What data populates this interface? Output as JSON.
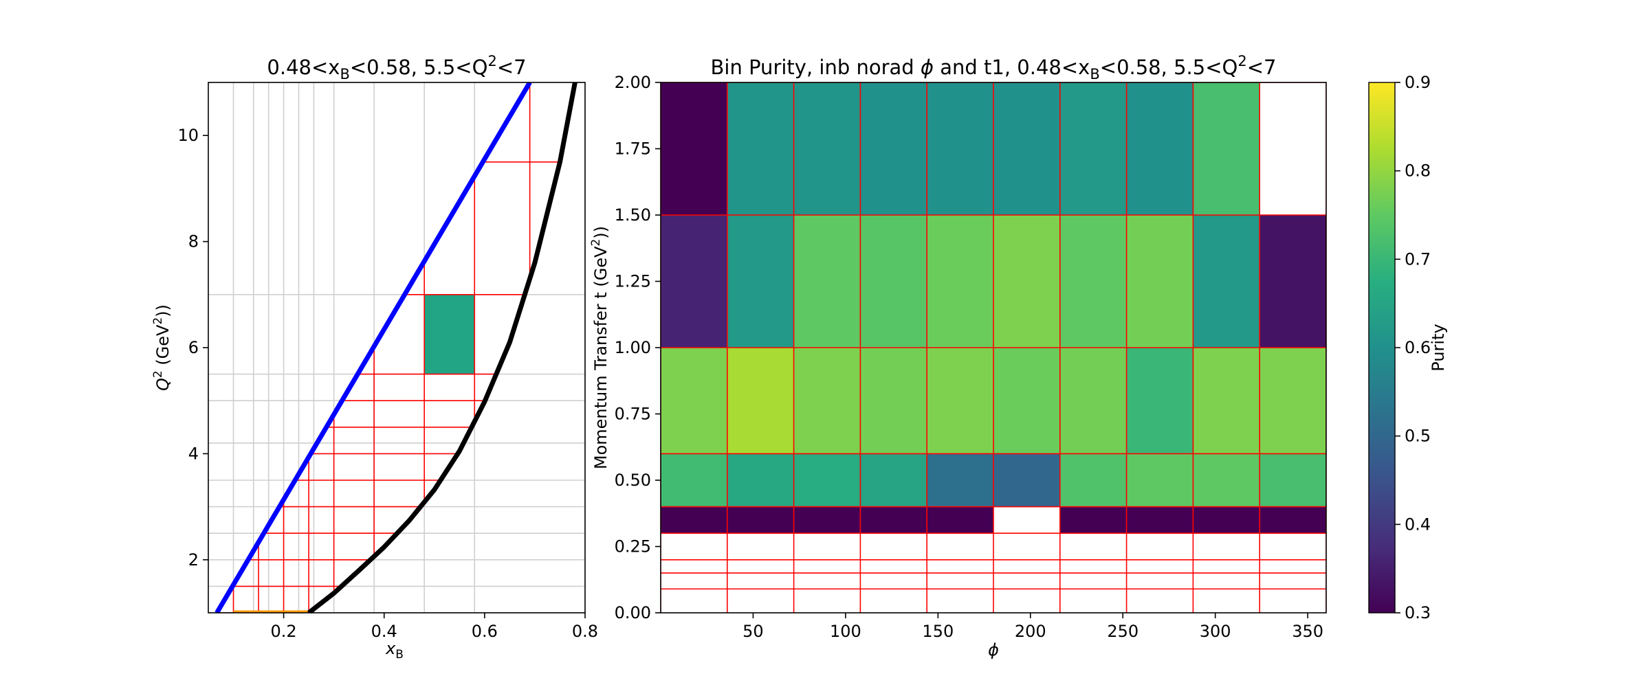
{
  "chart_data": [
    {
      "type": "scatter",
      "title_parts": {
        "a": "0.48<x",
        "a_sub": "B",
        "b": "<0.58, 5.5<Q",
        "b_sup": "2",
        "c": "<7"
      },
      "xlabel": {
        "main": "x",
        "sub": "B"
      },
      "ylabel": {
        "a": "Q",
        "a_sup": "2",
        "b": " (GeV",
        "b_sup": "2",
        "c": "))"
      },
      "xlim": [
        0.05,
        0.8
      ],
      "ylim": [
        1,
        11
      ],
      "xticks": [
        0.2,
        0.4,
        0.6,
        0.8
      ],
      "xtick_labels": [
        "0.2",
        "0.4",
        "0.6",
        "0.8"
      ],
      "yticks": [
        2,
        4,
        6,
        8,
        10
      ],
      "ytick_labels": [
        "2",
        "4",
        "6",
        "8",
        "10"
      ],
      "grid": true,
      "grid_x": [
        0.1,
        0.14,
        0.17,
        0.2,
        0.23,
        0.26,
        0.3,
        0.38,
        0.48,
        0.58,
        0.8
      ],
      "grid_y": [
        1.0,
        1.5,
        2.0,
        2.5,
        3.0,
        3.5,
        4.2,
        5.0,
        5.5,
        7.0,
        11.0
      ],
      "bin_x_edges": [
        0.1,
        0.15,
        0.2,
        0.25,
        0.3,
        0.38,
        0.48,
        0.58,
        0.69
      ],
      "bin_y_edges": [
        1.0,
        1.5,
        2.0,
        2.5,
        3.0,
        3.5,
        4.0,
        4.5,
        5.0,
        5.5,
        7.0,
        9.5
      ],
      "highlight_bin": {
        "x": [
          0.48,
          0.58
        ],
        "y": [
          5.5,
          7.0
        ],
        "color": "#21a585"
      },
      "curves": [
        {
          "name": "blue",
          "color": "#0000ff",
          "x": [
            0.067,
            0.69
          ],
          "y": [
            1.0,
            11.0
          ]
        },
        {
          "name": "black",
          "color": "#000000",
          "x": [
            0.25,
            0.3,
            0.35,
            0.4,
            0.45,
            0.5,
            0.55,
            0.6,
            0.65,
            0.7,
            0.75,
            0.78
          ],
          "y": [
            1.0,
            1.37,
            1.8,
            2.24,
            2.74,
            3.32,
            4.05,
            4.98,
            6.1,
            7.6,
            9.5,
            11.0
          ]
        }
      ],
      "floor_segment": {
        "color": "#ff9900",
        "x": [
          0.1,
          0.25
        ],
        "y": 1.0
      }
    },
    {
      "type": "heatmap",
      "title_parts": {
        "a": "Bin Purity, inb norad ",
        "phi": "ϕ",
        "b": " and t1, 0.48<x",
        "b_sub": "B",
        "c": "<0.58, 5.5<Q",
        "c_sup": "2",
        "d": "<7"
      },
      "xlabel": "ϕ",
      "ylabel": {
        "a": "Momentum Transfer t (GeV",
        "a_sup": "2",
        "b": "))"
      },
      "xlim": [
        0,
        360
      ],
      "ylim": [
        0,
        2
      ],
      "xticks": [
        50,
        100,
        150,
        200,
        250,
        300,
        350
      ],
      "xtick_labels": [
        "50",
        "100",
        "150",
        "200",
        "250",
        "300",
        "350"
      ],
      "yticks": [
        0,
        0.25,
        0.5,
        0.75,
        1.0,
        1.25,
        1.5,
        1.75,
        2.0
      ],
      "ytick_labels": [
        "0.00",
        "0.25",
        "0.50",
        "0.75",
        "1.00",
        "1.25",
        "1.50",
        "1.75",
        "2.00"
      ],
      "x_edges": [
        0,
        36,
        72,
        108,
        144,
        180,
        216,
        252,
        288,
        324,
        360
      ],
      "y_edges": [
        0.09,
        0.15,
        0.2,
        0.3,
        0.4,
        0.6,
        1.0,
        1.5,
        2.0
      ],
      "rows": [
        {
          "t_range": [
            0.3,
            0.4
          ],
          "values": [
            0.3,
            0.3,
            0.3,
            0.3,
            0.3,
            null,
            0.3,
            0.3,
            0.3,
            0.3
          ]
        },
        {
          "t_range": [
            0.4,
            0.6
          ],
          "values": [
            0.71,
            0.66,
            0.67,
            0.65,
            0.52,
            0.5,
            0.73,
            0.75,
            0.75,
            0.72
          ]
        },
        {
          "t_range": [
            0.6,
            1.0
          ],
          "values": [
            0.78,
            0.82,
            0.78,
            0.77,
            0.78,
            0.76,
            0.77,
            0.7,
            0.78,
            0.78
          ]
        },
        {
          "t_range": [
            1.0,
            1.5
          ],
          "values": [
            0.36,
            0.62,
            0.75,
            0.74,
            0.76,
            0.78,
            0.75,
            0.77,
            0.62,
            0.33
          ]
        },
        {
          "t_range": [
            1.5,
            2.0
          ],
          "values": [
            0.3,
            0.61,
            0.61,
            0.6,
            0.6,
            0.6,
            0.62,
            0.6,
            0.72,
            null
          ]
        }
      ],
      "colorbar": {
        "label": "Purity",
        "range": [
          0.3,
          0.9
        ],
        "ticks": [
          0.3,
          0.4,
          0.5,
          0.6,
          0.7,
          0.8,
          0.9
        ],
        "tick_labels": [
          "0.3",
          "0.4",
          "0.5",
          "0.6",
          "0.7",
          "0.8",
          "0.9"
        ]
      },
      "colormap": "viridis",
      "grid_color": "#ff0000"
    }
  ]
}
